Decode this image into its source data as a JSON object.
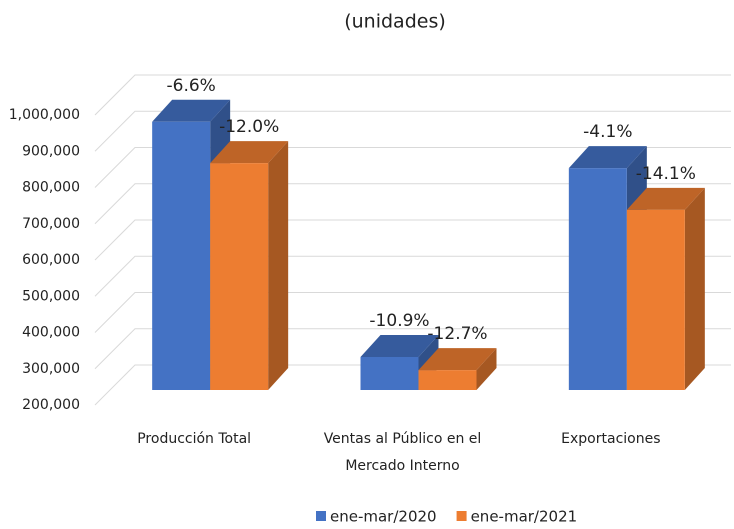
{
  "chart_data": {
    "type": "bar3d",
    "subtitle": "(unidades)",
    "categories": [
      "Producción Total",
      "Ventas al Público en el Mercado Interno",
      "Exportaciones"
    ],
    "series": [
      {
        "name": "ene-mar/2020",
        "color": "#4472c4",
        "values": [
          940000,
          291000,
          812000
        ],
        "data_labels": [
          "-6.6%",
          "-10.9%",
          "-4.1%"
        ]
      },
      {
        "name": "ene-mar/2021",
        "color": "#ed7d31",
        "values": [
          826000,
          255000,
          697000
        ],
        "data_labels": [
          "-12.0%",
          "-12.7%",
          "-14.1%"
        ]
      }
    ],
    "ylim": [
      200000,
      1000000
    ],
    "yticks": [
      {
        "value": 200000,
        "label": "200,000"
      },
      {
        "value": 300000,
        "label": "300,000"
      },
      {
        "value": 400000,
        "label": "400,000"
      },
      {
        "value": 500000,
        "label": "500,000"
      },
      {
        "value": 600000,
        "label": "600,000"
      },
      {
        "value": 700000,
        "label": "700,000"
      },
      {
        "value": 800000,
        "label": "800,000"
      },
      {
        "value": 900000,
        "label": "900,000"
      },
      {
        "value": 1000000,
        "label": "1,000,000"
      }
    ],
    "grid": true,
    "legend": "bottom"
  }
}
